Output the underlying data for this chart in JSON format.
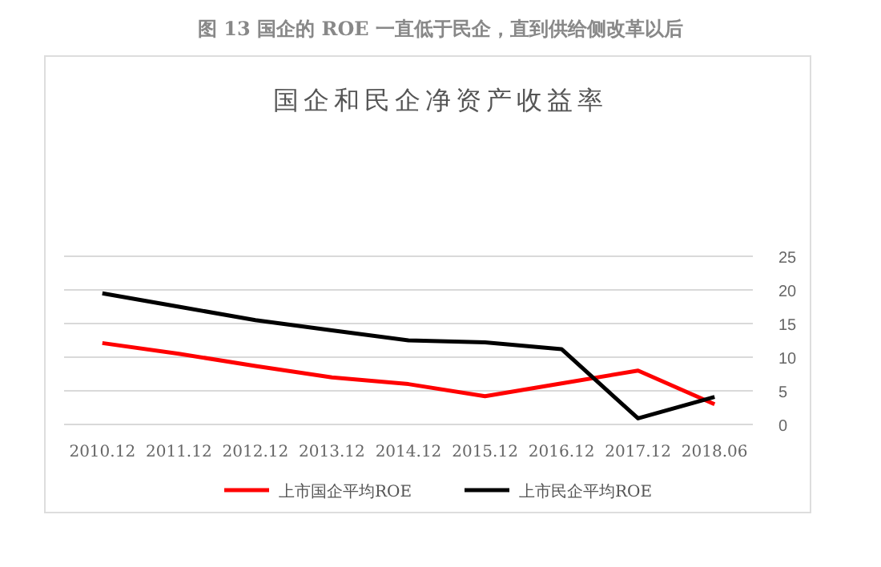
{
  "chart_data": {
    "type": "line",
    "title": "图 13 国企的 ROE 一直低于民企，直到供给侧改革以后",
    "subtitle": "国企和民企净资产收益率",
    "categories": [
      "2010.12",
      "2011.12",
      "2012.12",
      "2013.12",
      "2014.12",
      "2015.12",
      "2016.12",
      "2017.12",
      "2018.06"
    ],
    "series": [
      {
        "name": "上市国企平均ROE",
        "color": "#ff0000",
        "values": [
          12.1,
          10.5,
          8.7,
          7.0,
          6.0,
          4.2,
          6.1,
          8.0,
          3.0
        ]
      },
      {
        "name": "上市民企平均ROE",
        "color": "#000000",
        "values": [
          19.5,
          17.5,
          15.5,
          14.0,
          12.5,
          12.2,
          11.2,
          0.9,
          4.1
        ]
      }
    ],
    "ylim": [
      0,
      25
    ],
    "yticks": [
      0,
      5,
      10,
      15,
      20,
      25
    ],
    "grid": "y",
    "legend": "bottom"
  }
}
